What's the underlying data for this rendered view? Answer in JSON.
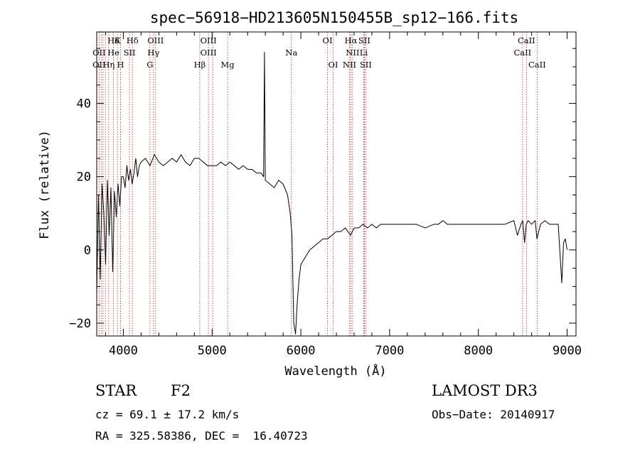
{
  "chart_data": {
    "type": "line",
    "title": "spec−56918−HD213605N150455B_sp12−166.fits",
    "xlabel": "Wavelength (Å)",
    "ylabel": "Flux (relative)",
    "xlim": [
      3700,
      9100
    ],
    "ylim": [
      -23.5,
      59.5
    ],
    "xticks": [
      4000,
      5000,
      6000,
      7000,
      8000,
      9000
    ],
    "yticks": [
      -20,
      0,
      20,
      40
    ],
    "xtick_labels": [
      "4000",
      "5000",
      "6000",
      "7000",
      "8000",
      "9000"
    ],
    "ytick_labels": [
      "−20",
      "0",
      "20",
      "40"
    ],
    "series": [
      {
        "x": [
          3700,
          3720,
          3740,
          3760,
          3780,
          3800,
          3820,
          3840,
          3860,
          3880,
          3900,
          3920,
          3940,
          3960,
          3980,
          4000,
          4020,
          4040,
          4060,
          4080,
          4100,
          4120,
          4140,
          4160,
          4180,
          4200,
          4250,
          4300,
          4350,
          4400,
          4450,
          4500,
          4550,
          4600,
          4650,
          4700,
          4750,
          4800,
          4850,
          4900,
          4950,
          5000,
          5050,
          5100,
          5150,
          5200,
          5250,
          5300,
          5350,
          5400,
          5450,
          5500,
          5550,
          5580,
          5590,
          5600,
          5650,
          5700,
          5750,
          5800,
          5850,
          5880,
          5900,
          5920,
          5940,
          5960,
          5980,
          6000,
          6050,
          6100,
          6150,
          6200,
          6250,
          6300,
          6350,
          6400,
          6450,
          6500,
          6560,
          6600,
          6650,
          6700,
          6750,
          6800,
          6850,
          6900,
          6950,
          7000,
          7100,
          7200,
          7300,
          7400,
          7500,
          7550,
          7600,
          7650,
          7700,
          7800,
          7900,
          8000,
          8100,
          8200,
          8300,
          8400,
          8440,
          8480,
          8500,
          8520,
          8540,
          8560,
          8600,
          8640,
          8660,
          8700,
          8750,
          8800,
          8850,
          8900,
          8940,
          8960,
          8980,
          9000
        ],
        "values": [
          -12,
          15,
          -8,
          18,
          10,
          -4,
          19,
          4,
          17,
          -6,
          16,
          9,
          18,
          12,
          20,
          20,
          17,
          23,
          19,
          22,
          18,
          21,
          25,
          20,
          23,
          24,
          25,
          23,
          26,
          24,
          23,
          24,
          25,
          24,
          26,
          24,
          23,
          25,
          25,
          24,
          23,
          23,
          23,
          24,
          23,
          24,
          23,
          22,
          23,
          22,
          22,
          21,
          21,
          20,
          54,
          19,
          18,
          17,
          19,
          18,
          15,
          10,
          4,
          -20,
          -23,
          -14,
          -8,
          -4,
          -2,
          0,
          1,
          2,
          3,
          3,
          4,
          5,
          5,
          6,
          4,
          6,
          6,
          7,
          6,
          7,
          6,
          7,
          7,
          7,
          7,
          7,
          7,
          6,
          7,
          7,
          8,
          7,
          7,
          7,
          7,
          7,
          7,
          7,
          7,
          8,
          4,
          7,
          8,
          2,
          7,
          8,
          7,
          8,
          3,
          7,
          8,
          7,
          7,
          7,
          -9,
          2,
          3,
          0
        ]
      }
    ],
    "line_labels": [
      {
        "text": "Hδ",
        "wl": 3889,
        "row": 1
      },
      {
        "text": "K",
        "wl": 3933,
        "row": 1
      },
      {
        "text": "Hδ",
        "wl": 4102,
        "row": 1
      },
      {
        "text": "OIII",
        "wl": 4363,
        "row": 1
      },
      {
        "text": "OIII",
        "wl": 4959,
        "row": 1
      },
      {
        "text": "OI",
        "wl": 6300,
        "row": 1
      },
      {
        "text": "Hα",
        "wl": 6563,
        "row": 1
      },
      {
        "text": "SII",
        "wl": 6716,
        "row": 1
      },
      {
        "text": "CaII",
        "wl": 8542,
        "row": 1
      },
      {
        "text": "OII",
        "wl": 3727,
        "row": 2
      },
      {
        "text": "He",
        "wl": 3889,
        "row": 2
      },
      {
        "text": "SII",
        "wl": 4069,
        "row": 2
      },
      {
        "text": "Hγ",
        "wl": 4340,
        "row": 2
      },
      {
        "text": "OIII",
        "wl": 4959,
        "row": 2
      },
      {
        "text": "Na",
        "wl": 5893,
        "row": 2
      },
      {
        "text": "NII",
        "wl": 6583,
        "row": 2
      },
      {
        "text": "Li",
        "wl": 6708,
        "row": 2
      },
      {
        "text": "CaII",
        "wl": 8498,
        "row": 2
      },
      {
        "text": "OII",
        "wl": 3727,
        "row": 3
      },
      {
        "text": "Hη",
        "wl": 3835,
        "row": 3
      },
      {
        "text": "H",
        "wl": 3969,
        "row": 3
      },
      {
        "text": "G",
        "wl": 4300,
        "row": 3
      },
      {
        "text": "Hβ",
        "wl": 4861,
        "row": 3
      },
      {
        "text": "Mg",
        "wl": 5175,
        "row": 3
      },
      {
        "text": "OI",
        "wl": 6364,
        "row": 3
      },
      {
        "text": "NII",
        "wl": 6548,
        "row": 3
      },
      {
        "text": "SII",
        "wl": 6731,
        "row": 3
      },
      {
        "text": "CaII",
        "wl": 8662,
        "row": 3
      }
    ],
    "line_positions": [
      3727,
      3750,
      3771,
      3798,
      3835,
      3889,
      3933,
      3969,
      4069,
      4102,
      4300,
      4340,
      4363,
      4861,
      4959,
      5007,
      5175,
      5893,
      6300,
      6364,
      6548,
      6563,
      6583,
      6708,
      6716,
      6731,
      8498,
      8542,
      8662
    ]
  },
  "info": {
    "object_type": "STAR",
    "subclass": "F2",
    "survey": "LAMOST DR3",
    "cz": "cz = 69.1 ± 17.2 km/s",
    "obs_date": "Obs−Date: 20140917",
    "coords": "RA = 325.58386, DEC =  16.40723"
  }
}
